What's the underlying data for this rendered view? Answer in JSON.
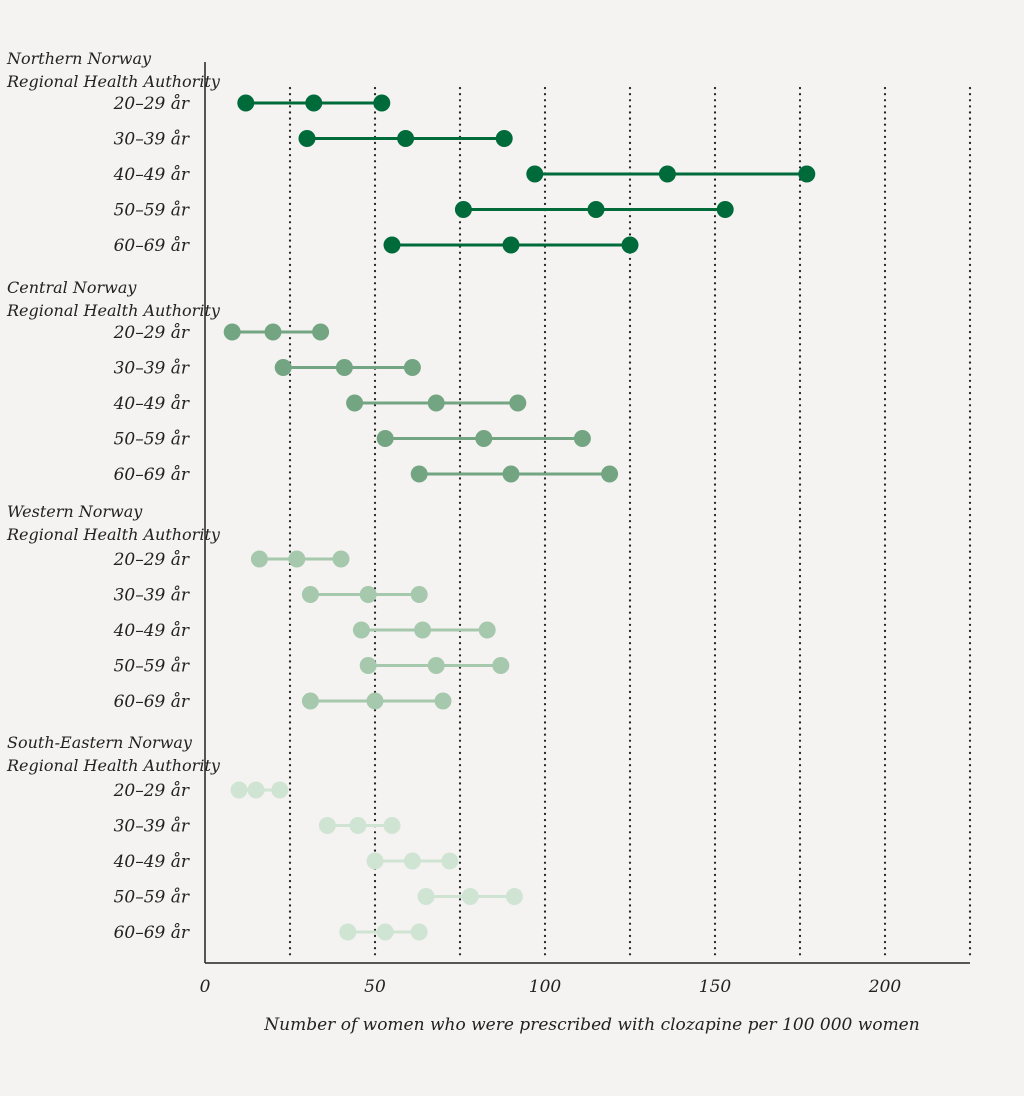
{
  "chart_data": {
    "type": "dot-range",
    "xlabel": "Number of women who were prescribed with clozapine per 100 000 women",
    "xlim": [
      0,
      225
    ],
    "xticks": [
      0,
      50,
      100,
      150,
      200
    ],
    "gridlines": [
      25,
      50,
      75,
      100,
      125,
      150,
      175,
      200,
      225
    ],
    "grid": "vertical dotted",
    "groups": [
      {
        "name": [
          "Northern Norway",
          "Regional Health Authority"
        ],
        "color": "#006b3a",
        "rows": [
          {
            "label": "20–29 år",
            "values": [
              12,
              32,
              52
            ]
          },
          {
            "label": "30–39 år",
            "values": [
              30,
              59,
              88
            ]
          },
          {
            "label": "40–49 år",
            "values": [
              97,
              136,
              177
            ]
          },
          {
            "label": "50–59 år",
            "values": [
              76,
              115,
              153
            ]
          },
          {
            "label": "60–69 år",
            "values": [
              55,
              90,
              125
            ]
          }
        ]
      },
      {
        "name": [
          "Central Norway",
          "Regional Health Authority"
        ],
        "color": "#74a582",
        "rows": [
          {
            "label": "20–29 år",
            "values": [
              8,
              20,
              34
            ]
          },
          {
            "label": "30–39 år",
            "values": [
              23,
              41,
              61
            ]
          },
          {
            "label": "40–49 år",
            "values": [
              44,
              68,
              92
            ]
          },
          {
            "label": "50–59 år",
            "values": [
              53,
              82,
              111
            ]
          },
          {
            "label": "60–69 år",
            "values": [
              63,
              90,
              119
            ]
          }
        ]
      },
      {
        "name": [
          "Western Norway",
          "Regional Health Authority"
        ],
        "color": "#a6c8ac",
        "rows": [
          {
            "label": "20–29 år",
            "values": [
              16,
              27,
              40
            ]
          },
          {
            "label": "30–39 år",
            "values": [
              31,
              48,
              63
            ]
          },
          {
            "label": "40–49 år",
            "values": [
              46,
              64,
              83
            ]
          },
          {
            "label": "50–59 år",
            "values": [
              48,
              68,
              87
            ]
          },
          {
            "label": "60–69 år",
            "values": [
              31,
              50,
              70
            ]
          }
        ]
      },
      {
        "name": [
          "South-Eastern Norway",
          "Regional Health Authority"
        ],
        "color": "#cfe4d3",
        "rows": [
          {
            "label": "20–29 år",
            "values": [
              10,
              15,
              22
            ]
          },
          {
            "label": "30–39 år",
            "values": [
              36,
              45,
              55
            ]
          },
          {
            "label": "40–49 år",
            "values": [
              50,
              61,
              72
            ]
          },
          {
            "label": "50–59 år",
            "values": [
              65,
              78,
              91
            ]
          },
          {
            "label": "60–69 år",
            "values": [
              42,
              53,
              63
            ]
          }
        ]
      }
    ]
  }
}
